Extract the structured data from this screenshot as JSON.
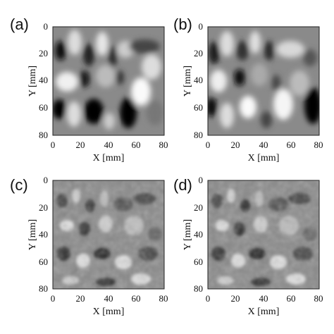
{
  "figure": {
    "panels": [
      {
        "letter": "(a)",
        "xlabel": "X [mm]",
        "ylabel": "Y [mm]"
      },
      {
        "letter": "(b)",
        "xlabel": "X [mm]",
        "ylabel": "Y [mm]"
      },
      {
        "letter": "(c)",
        "xlabel": "X [mm]",
        "ylabel": "Y [mm]"
      },
      {
        "letter": "(d)",
        "xlabel": "X [mm]",
        "ylabel": "Y [mm]"
      }
    ],
    "x_ticks": [
      "0",
      "20",
      "40",
      "60",
      "80"
    ],
    "y_ticks": [
      "0",
      "20",
      "40",
      "60",
      "80"
    ],
    "xlim": [
      0,
      80
    ],
    "ylim": [
      0,
      80
    ],
    "image_type": "grayscale-intensity-map",
    "colors": {
      "background": "#ffffff",
      "frame": "#222222",
      "mid_gray": "#8a8a8a"
    }
  }
}
